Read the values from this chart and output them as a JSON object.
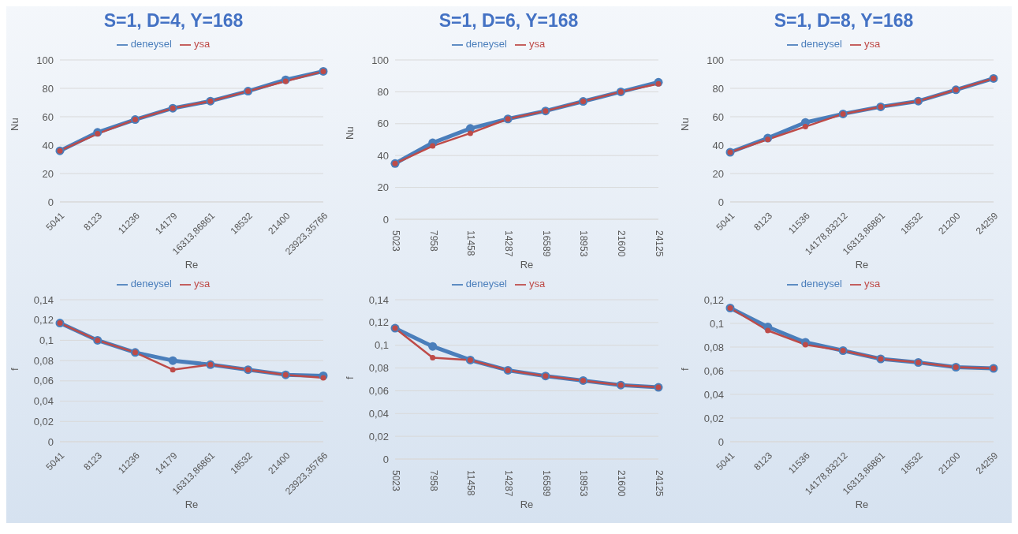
{
  "chart_data": [
    {
      "type": "line",
      "title": "S=1, D=4, Y=168",
      "xlabel": "Re",
      "ylabel": "Nu",
      "categories": [
        "5041",
        "8123",
        "11236",
        "14179",
        "16313,86861",
        "18532",
        "21400",
        "23923,35766"
      ],
      "series": [
        {
          "name": "deneysel",
          "color": "#4a7ebb",
          "values": [
            36,
            49,
            58,
            66,
            71,
            78,
            86,
            92
          ]
        },
        {
          "name": "ysa",
          "color": "#be4b48",
          "values": [
            36,
            48,
            58,
            66,
            71,
            78,
            85,
            92
          ]
        }
      ],
      "ylim": [
        0,
        100
      ],
      "yticks": [
        0,
        20,
        40,
        60,
        80,
        100
      ],
      "grid": "y",
      "legend": "top",
      "marker": "circle",
      "line_style": "solid"
    },
    {
      "type": "line",
      "title": "S=1, D=6, Y=168",
      "xlabel": "Re",
      "ylabel": "Nu",
      "categories": [
        "5023",
        "7958",
        "11458",
        "14287",
        "16589",
        "18953",
        "21600",
        "24125"
      ],
      "series": [
        {
          "name": "deneysel",
          "color": "#4a7ebb",
          "values": [
            35,
            48,
            57,
            63,
            68,
            74,
            80,
            86
          ]
        },
        {
          "name": "ysa",
          "color": "#be4b48",
          "values": [
            35,
            46,
            54,
            63,
            68,
            74,
            80,
            85
          ]
        }
      ],
      "ylim": [
        0,
        100
      ],
      "yticks": [
        0,
        20,
        40,
        60,
        80,
        100
      ],
      "grid": "y",
      "legend": "top",
      "marker": "circle",
      "line_style": "solid"
    },
    {
      "type": "line",
      "title": "S=1, D=8, Y=168",
      "xlabel": "Re",
      "ylabel": "Nu",
      "categories": [
        "5041",
        "8123",
        "11536",
        "14178,83212",
        "16313,86861",
        "18532",
        "21200",
        "24259"
      ],
      "series": [
        {
          "name": "deneysel",
          "color": "#4a7ebb",
          "values": [
            35,
            45,
            56,
            62,
            67,
            71,
            79,
            87
          ]
        },
        {
          "name": "ysa",
          "color": "#be4b48",
          "values": [
            35,
            44,
            53,
            62,
            67,
            71,
            79,
            87
          ]
        }
      ],
      "ylim": [
        0,
        100
      ],
      "yticks": [
        0,
        20,
        40,
        60,
        80,
        100
      ],
      "grid": "y",
      "legend": "top",
      "marker": "circle",
      "line_style": "solid"
    },
    {
      "type": "line",
      "xlabel": "Re",
      "ylabel": "f",
      "categories": [
        "5041",
        "8123",
        "11236",
        "14179",
        "16313,86861",
        "18532",
        "21400",
        "23923,35766"
      ],
      "series": [
        {
          "name": "deneysel",
          "color": "#4a7ebb",
          "values": [
            0.117,
            0.1,
            0.088,
            0.08,
            0.076,
            0.071,
            0.066,
            0.065
          ]
        },
        {
          "name": "ysa",
          "color": "#be4b48",
          "values": [
            0.117,
            0.1,
            0.088,
            0.071,
            0.076,
            0.071,
            0.066,
            0.063
          ]
        }
      ],
      "ylim": [
        0,
        0.14
      ],
      "yticks": [
        0,
        {
          "value": 0.02,
          "label": "0,02"
        },
        {
          "value": 0.04,
          "label": "0,04"
        },
        {
          "value": 0.06,
          "label": "0,06"
        },
        {
          "value": 0.08,
          "label": "0,08"
        },
        {
          "value": 0.1,
          "label": "0,1"
        },
        {
          "value": 0.12,
          "label": "0,12"
        },
        {
          "value": 0.14,
          "label": "0,14"
        }
      ],
      "grid": "y",
      "legend": "top",
      "marker": "circle",
      "line_style": "solid"
    },
    {
      "type": "line",
      "xlabel": "Re",
      "ylabel": "f",
      "categories": [
        "5023",
        "7958",
        "11458",
        "14287",
        "16589",
        "18953",
        "21600",
        "24125"
      ],
      "series": [
        {
          "name": "deneysel",
          "color": "#4a7ebb",
          "values": [
            0.115,
            0.099,
            0.087,
            0.078,
            0.073,
            0.069,
            0.065,
            0.063
          ]
        },
        {
          "name": "ysa",
          "color": "#be4b48",
          "values": [
            0.115,
            0.089,
            0.087,
            0.078,
            0.073,
            0.069,
            0.065,
            0.063
          ]
        }
      ],
      "ylim": [
        0,
        0.14
      ],
      "yticks": [
        0,
        {
          "value": 0.02,
          "label": "0,02"
        },
        {
          "value": 0.04,
          "label": "0,04"
        },
        {
          "value": 0.06,
          "label": "0,06"
        },
        {
          "value": 0.08,
          "label": "0,08"
        },
        {
          "value": 0.1,
          "label": "0,1"
        },
        {
          "value": 0.12,
          "label": "0,12"
        },
        {
          "value": 0.14,
          "label": "0,14"
        }
      ],
      "grid": "y",
      "legend": "top",
      "marker": "circle",
      "line_style": "solid"
    },
    {
      "type": "line",
      "xlabel": "Re",
      "ylabel": "f",
      "categories": [
        "5041",
        "8123",
        "11536",
        "14178,83212",
        "16313,86861",
        "18532",
        "21200",
        "24259"
      ],
      "series": [
        {
          "name": "deneysel",
          "color": "#4a7ebb",
          "values": [
            0.113,
            0.097,
            0.084,
            0.077,
            0.07,
            0.067,
            0.063,
            0.062
          ]
        },
        {
          "name": "ysa",
          "color": "#be4b48",
          "values": [
            0.113,
            0.094,
            0.082,
            0.077,
            0.07,
            0.067,
            0.063,
            0.062
          ]
        }
      ],
      "ylim": [
        0,
        0.12
      ],
      "yticks": [
        0,
        {
          "value": 0.02,
          "label": "0,02"
        },
        {
          "value": 0.04,
          "label": "0,04"
        },
        {
          "value": 0.06,
          "label": "0,06"
        },
        {
          "value": 0.08,
          "label": "0,08"
        },
        {
          "value": 0.1,
          "label": "0,1"
        },
        {
          "value": 0.12,
          "label": "0,12"
        }
      ],
      "grid": "y",
      "legend": "top",
      "marker": "circle",
      "line_style": "solid"
    }
  ]
}
